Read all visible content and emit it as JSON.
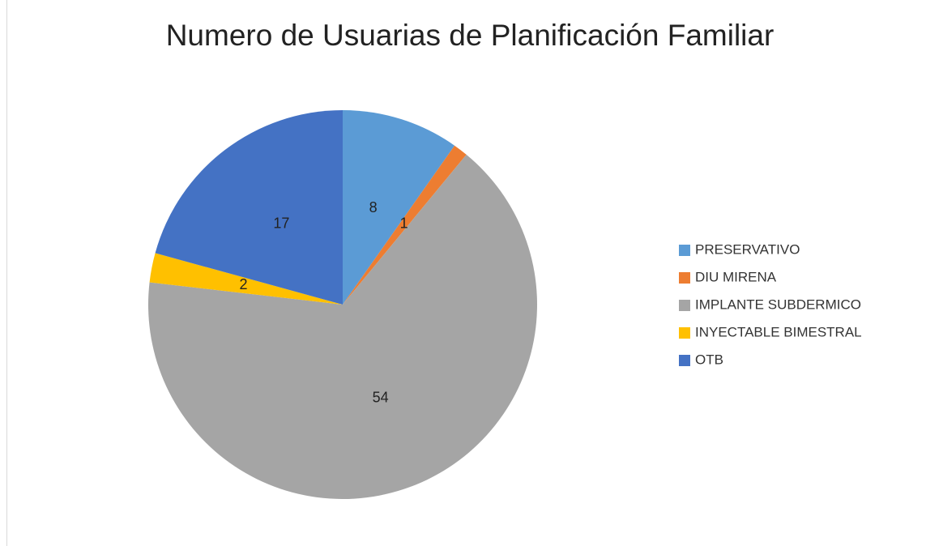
{
  "chart_data": {
    "type": "pie",
    "title": "Numero de Usuarias de Planificación Familiar",
    "categories": [
      "PRESERVATIVO",
      "DIU MIRENA",
      "IMPLANTE SUBDERMICO",
      "INYECTABLE BIMESTRAL",
      "OTB"
    ],
    "values": [
      8,
      1,
      54,
      2,
      17
    ],
    "colors": [
      "#5b9bd5",
      "#ed7d31",
      "#a5a5a5",
      "#ffc000",
      "#4472c4"
    ],
    "legend": "right"
  }
}
